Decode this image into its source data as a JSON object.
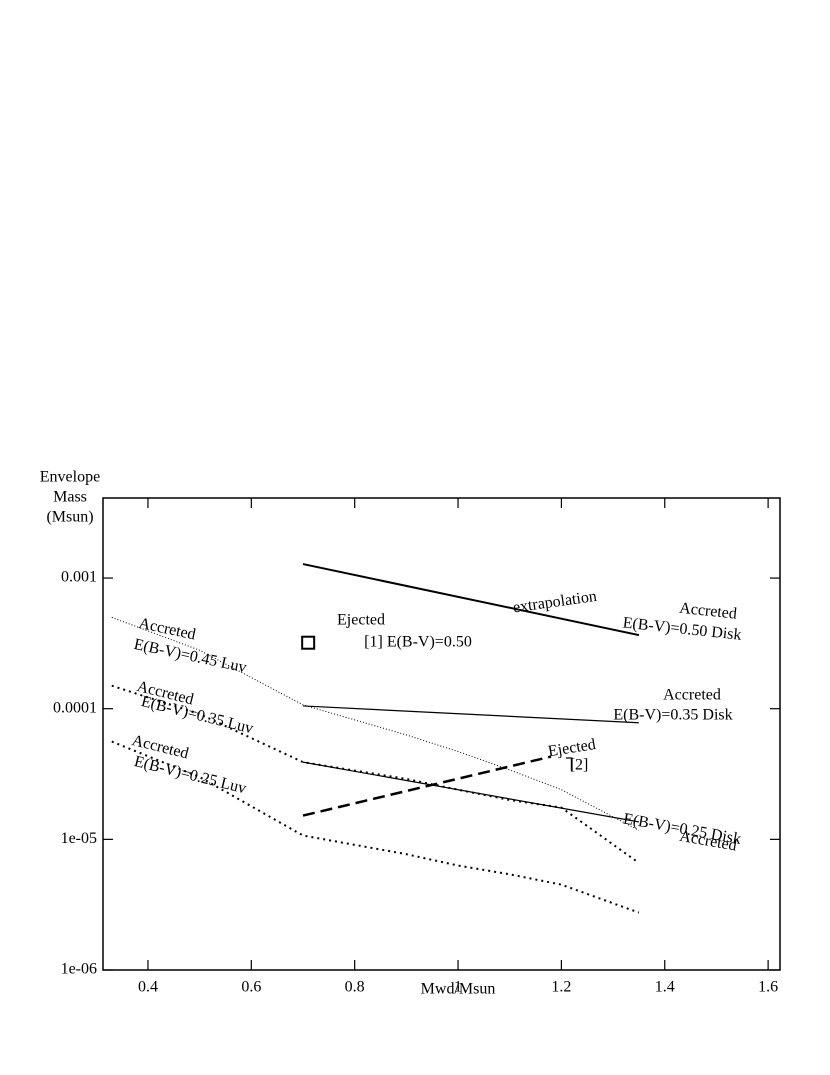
{
  "chart_data": {
    "type": "line",
    "ylabel": [
      "Envelope",
      "Mass",
      "(Msun)"
    ],
    "xlabel": "Mwd/Msun",
    "xlim": [
      0.313,
      1.623
    ],
    "xticks": [
      0.4,
      0.6,
      0.8,
      1,
      1.2,
      1.4,
      1.6
    ],
    "ylim": [
      1e-06,
      0.0041
    ],
    "yscale": "log",
    "yticks": [
      {
        "value": 1e-06,
        "label": "1e-06"
      },
      {
        "value": 1e-05,
        "label": "1e-05"
      },
      0.0001,
      0.001
    ],
    "series": [
      {
        "x": [
          0.7,
          1.35
        ],
        "values": [
          0.00128,
          0.000366
        ],
        "style": "solid",
        "width": 2,
        "color": "#000000"
      },
      {
        "x": [
          0.7,
          1.35
        ],
        "values": [
          0.000105,
          7.8e-05
        ],
        "style": "solid",
        "width": 1.2,
        "color": "#000000"
      },
      {
        "x": [
          0.7,
          1.35
        ],
        "values": [
          3.9e-05,
          1.36e-05
        ],
        "style": "solid",
        "width": 1.2,
        "color": "#000000"
      },
      {
        "x": [
          0.7,
          1.18
        ],
        "values": [
          1.52e-05,
          4.3e-05
        ],
        "style": "dashed",
        "width": 2.5,
        "color": "#000000"
      },
      {
        "x": [
          0.33,
          0.5,
          0.7,
          0.9,
          1.0,
          1.1,
          1.2,
          1.35
        ],
        "values": [
          0.0005,
          0.00028,
          0.000107,
          6.3e-05,
          4.7e-05,
          3.4e-05,
          2.4e-05,
          1.17e-05
        ],
        "style": "dotted-fine",
        "width": 1,
        "color": "#000000"
      },
      {
        "x": [
          0.33,
          0.5,
          0.7,
          0.9,
          1.0,
          1.1,
          1.2,
          1.35
        ],
        "values": [
          0.00015,
          9.1e-05,
          3.9e-05,
          2.9e-05,
          2.4e-05,
          2e-05,
          1.75e-05,
          6.6e-06
        ],
        "style": "dotted",
        "width": 2,
        "color": "#000000"
      },
      {
        "x": [
          0.33,
          0.5,
          0.7,
          0.9,
          1.0,
          1.1,
          1.2,
          1.35
        ],
        "values": [
          5.6e-05,
          3e-05,
          1.07e-05,
          7.7e-06,
          6.3e-06,
          5.4e-06,
          4.5e-06,
          2.75e-06
        ],
        "style": "dotted",
        "width": 2,
        "color": "#000000"
      }
    ],
    "markers": [
      {
        "x": [
          0.71
        ],
        "values": [
          0.00032
        ],
        "shape": "square",
        "color": "#000000"
      }
    ],
    "annotations": [
      "extrapolation",
      "Accreted",
      "E(B-V)=0.50 Disk",
      "Ejected",
      "[1]  E(B-V)=0.50",
      "Accreted",
      "E(B-V)=0.45  Luv",
      "Accreted",
      "E(B-V)=0.35 Disk",
      "Accreted",
      "E(B-V)=0.35  Luv",
      "Ejected",
      "[2]",
      "Accreted",
      "E(B-V)=0.25 Disk",
      "Accreted",
      "E(B-V)=0.25  Luv"
    ]
  }
}
